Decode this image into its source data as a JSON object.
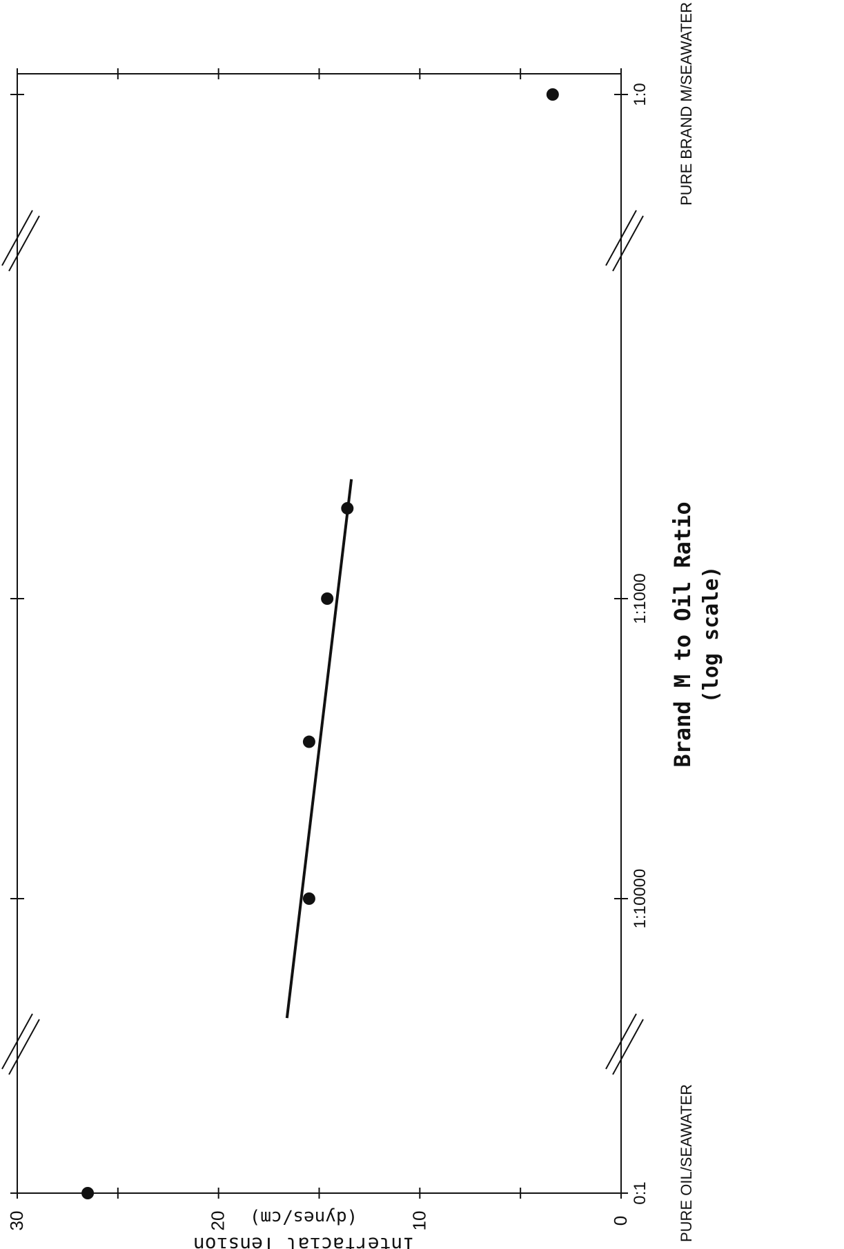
{
  "chart_data": {
    "type": "scatter",
    "title": "",
    "xlabel": "Brand M to Oil Ratio",
    "xlabel_note": "(log scale)",
    "ylabel": "Interfacial Tension",
    "ylabel_units": "(dynes/cm)",
    "y_ticks": [
      "0",
      "10",
      "20",
      "30"
    ],
    "ylim": [
      0,
      30
    ],
    "x_ticks": [
      "0:1",
      "1:10000",
      "1:1000",
      "1:0"
    ],
    "x_end_labels": {
      "left": "PURE OIL/SEAWATER",
      "right": "PURE BRAND M/SEAWATER"
    },
    "axis_breaks": true,
    "grid": false,
    "points": [
      {
        "x": "0:1",
        "y": 26.5
      },
      {
        "x": "1:10000",
        "y": 15.5
      },
      {
        "x": "1:3000",
        "y": 15.5
      },
      {
        "x": "1:1000",
        "y": 14.6
      },
      {
        "x": "1:500",
        "y": 13.6
      },
      {
        "x": "1:0",
        "y": 3.4
      }
    ],
    "fit_line": [
      {
        "x": "1:25000",
        "y": 16.6
      },
      {
        "x": "1:400",
        "y": 13.4
      }
    ]
  }
}
